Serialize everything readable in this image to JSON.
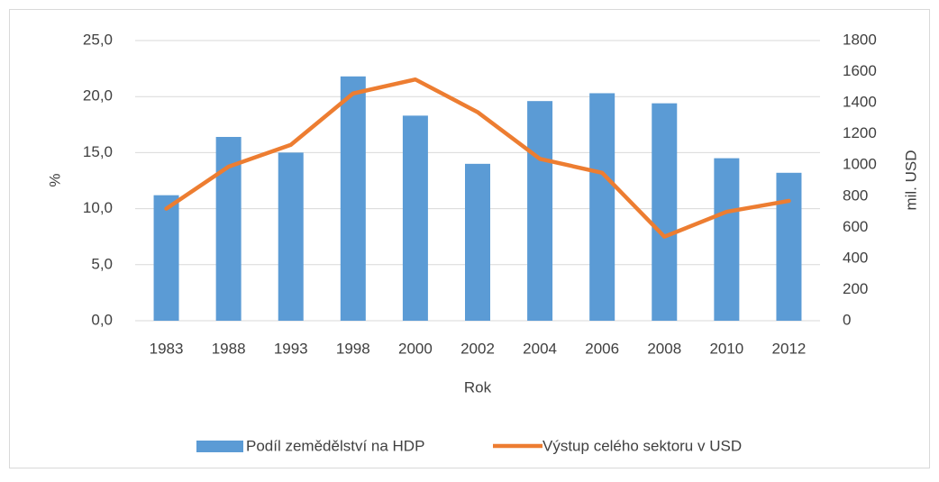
{
  "chart_data": {
    "type": "bar",
    "x_label": "Rok",
    "y_label": "%",
    "y2_label": "mil. USD",
    "categories": [
      "1983",
      "1988",
      "1993",
      "1998",
      "2000",
      "2002",
      "2004",
      "2006",
      "2008",
      "2010",
      "2012"
    ],
    "series": [
      {
        "name": "Podíl zemědělství na HDP",
        "type": "bar",
        "color": "#5b9bd5",
        "values": [
          11.2,
          16.4,
          15.0,
          21.8,
          18.3,
          14.0,
          19.6,
          20.3,
          19.4,
          14.5,
          13.2
        ]
      },
      {
        "name": "Výstup celého sektoru v USD",
        "type": "line",
        "axis": "y2",
        "color": "#ed7d31",
        "values": [
          720,
          990,
          1130,
          1460,
          1550,
          1340,
          1040,
          950,
          540,
          700,
          770
        ]
      }
    ],
    "ylim": [
      0,
      25
    ],
    "yticks": [
      {
        "value": 0,
        "label": "0,0"
      },
      {
        "value": 5,
        "label": "5,0"
      },
      {
        "value": 10,
        "label": "10,0"
      },
      {
        "value": 15,
        "label": "15,0"
      },
      {
        "value": 20,
        "label": "20,0"
      },
      {
        "value": 25,
        "label": "25,0"
      }
    ],
    "y2lim": [
      0,
      1800
    ],
    "y2ticks": [
      0,
      200,
      400,
      600,
      800,
      1000,
      1200,
      1400,
      1600,
      1800
    ],
    "grid": true,
    "legend": "bottom"
  }
}
